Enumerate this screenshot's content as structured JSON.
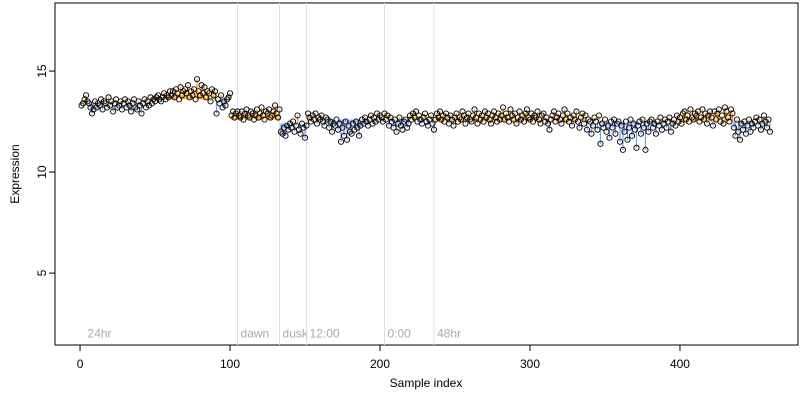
{
  "chart_data": {
    "type": "scatter",
    "xlabel": "Sample index",
    "ylabel": "Expression",
    "xlim": [
      -16.7,
      478.7
    ],
    "ylim": [
      1.44,
      18.37
    ],
    "xticks": [
      0,
      100,
      200,
      300,
      400
    ],
    "yticks": [
      5,
      10,
      15
    ],
    "above_color": "#ff9f1c",
    "below_color": "#7aa2e8",
    "point_color": "#000000",
    "reference_levels": [
      {
        "start": 1,
        "end": 48,
        "level": 13.4
      },
      {
        "start": 49,
        "end": 100,
        "level": 13.6
      },
      {
        "start": 101,
        "end": 133,
        "level": 12.6
      },
      {
        "start": 134,
        "end": 152,
        "level": 12.4
      },
      {
        "start": 153,
        "end": 235,
        "level": 12.6
      },
      {
        "start": 236,
        "end": 460,
        "level": 12.5
      }
    ],
    "markers": [
      {
        "x": 3,
        "label": "24hr",
        "line": false
      },
      {
        "x": 105,
        "label": "dawn",
        "line": true
      },
      {
        "x": 133,
        "label": "dusk",
        "line": true
      },
      {
        "x": 151,
        "label": "12:00",
        "line": true
      },
      {
        "x": 203,
        "label": "0:00",
        "line": true
      },
      {
        "x": 236,
        "label": "48hr",
        "line": true
      }
    ],
    "marker_label_y": 2.0,
    "x": [
      1,
      2,
      3,
      4,
      5,
      6,
      7,
      8,
      9,
      10,
      11,
      12,
      13,
      14,
      15,
      16,
      17,
      18,
      19,
      20,
      21,
      22,
      23,
      24,
      25,
      26,
      27,
      28,
      29,
      30,
      31,
      32,
      33,
      34,
      35,
      36,
      37,
      38,
      39,
      40,
      41,
      42,
      43,
      44,
      45,
      46,
      47,
      48,
      49,
      50,
      51,
      52,
      53,
      54,
      55,
      56,
      57,
      58,
      59,
      60,
      61,
      62,
      63,
      64,
      65,
      66,
      67,
      68,
      69,
      70,
      71,
      72,
      73,
      74,
      75,
      76,
      77,
      78,
      79,
      80,
      81,
      82,
      83,
      84,
      85,
      86,
      87,
      88,
      89,
      90,
      91,
      92,
      93,
      94,
      95,
      96,
      97,
      98,
      99,
      100,
      101,
      102,
      103,
      104,
      105,
      106,
      107,
      108,
      109,
      110,
      111,
      112,
      113,
      114,
      115,
      116,
      117,
      118,
      119,
      120,
      121,
      122,
      123,
      124,
      125,
      126,
      127,
      128,
      129,
      130,
      131,
      132,
      133,
      134,
      135,
      136,
      137,
      138,
      139,
      140,
      141,
      142,
      143,
      144,
      145,
      146,
      147,
      148,
      149,
      150,
      151,
      152,
      153,
      154,
      155,
      156,
      157,
      158,
      159,
      160,
      161,
      162,
      163,
      164,
      165,
      166,
      167,
      168,
      169,
      170,
      171,
      172,
      173,
      174,
      175,
      176,
      177,
      178,
      179,
      180,
      181,
      182,
      183,
      184,
      185,
      186,
      187,
      188,
      189,
      190,
      191,
      192,
      193,
      194,
      195,
      196,
      197,
      198,
      199,
      200,
      201,
      202,
      203,
      204,
      205,
      206,
      207,
      208,
      209,
      210,
      211,
      212,
      213,
      214,
      215,
      216,
      217,
      218,
      219,
      220,
      221,
      222,
      223,
      224,
      225,
      226,
      227,
      228,
      229,
      230,
      231,
      232,
      233,
      234,
      235,
      236,
      237,
      238,
      239,
      240,
      241,
      242,
      243,
      244,
      245,
      246,
      247,
      248,
      249,
      250,
      251,
      252,
      253,
      254,
      255,
      256,
      257,
      258,
      259,
      260,
      261,
      262,
      263,
      264,
      265,
      266,
      267,
      268,
      269,
      270,
      271,
      272,
      273,
      274,
      275,
      276,
      277,
      278,
      279,
      280,
      281,
      282,
      283,
      284,
      285,
      286,
      287,
      288,
      289,
      290,
      291,
      292,
      293,
      294,
      295,
      296,
      297,
      298,
      299,
      300,
      301,
      302,
      303,
      304,
      305,
      306,
      307,
      308,
      309,
      310,
      311,
      312,
      313,
      314,
      315,
      316,
      317,
      318,
      319,
      320,
      321,
      322,
      323,
      324,
      325,
      326,
      327,
      328,
      329,
      330,
      331,
      332,
      333,
      334,
      335,
      336,
      337,
      338,
      339,
      340,
      341,
      342,
      343,
      344,
      345,
      346,
      347,
      348,
      349,
      350,
      351,
      352,
      353,
      354,
      355,
      356,
      357,
      358,
      359,
      360,
      361,
      362,
      363,
      364,
      365,
      366,
      367,
      368,
      369,
      370,
      371,
      372,
      373,
      374,
      375,
      376,
      377,
      378,
      379,
      380,
      381,
      382,
      383,
      384,
      385,
      386,
      387,
      388,
      389,
      390,
      391,
      392,
      393,
      394,
      395,
      396,
      397,
      398,
      399,
      400,
      401,
      402,
      403,
      404,
      405,
      406,
      407,
      408,
      409,
      410,
      411,
      412,
      413,
      414,
      415,
      416,
      417,
      418,
      419,
      420,
      421,
      422,
      423,
      424,
      425,
      426,
      427,
      428,
      429,
      430,
      431,
      432,
      433,
      434,
      435,
      436,
      437,
      438,
      439,
      440,
      441,
      442,
      443,
      444,
      445,
      446,
      447,
      448,
      449,
      450,
      451,
      452,
      453,
      454,
      455,
      456,
      457,
      458,
      459,
      460
    ],
    "values": [
      13.3,
      13.4,
      13.6,
      13.8,
      13.5,
      13.4,
      13.2,
      12.9,
      13.1,
      13.5,
      13.2,
      13.4,
      13.3,
      13.6,
      13.1,
      13.5,
      13.4,
      13.2,
      13.7,
      13.3,
      13.5,
      13.0,
      13.4,
      13.6,
      13.2,
      13.3,
      13.5,
      13.1,
      13.4,
      13.6,
      13.2,
      13.5,
      13.3,
      13.0,
      13.4,
      13.6,
      13.2,
      13.1,
      13.5,
      13.3,
      12.9,
      13.4,
      13.6,
      13.2,
      13.5,
      13.3,
      13.7,
      13.4,
      13.6,
      13.5,
      13.7,
      13.8,
      13.6,
      13.5,
      13.7,
      13.9,
      13.6,
      13.8,
      13.7,
      14.0,
      13.8,
      14.0,
      13.7,
      14.1,
      13.9,
      13.6,
      14.2,
      13.8,
      14.0,
      14.1,
      13.9,
      14.3,
      13.7,
      14.0,
      13.8,
      14.1,
      13.6,
      14.6,
      14.0,
      13.8,
      14.3,
      13.9,
      14.2,
      13.7,
      14.0,
      13.9,
      13.5,
      14.1,
      13.8,
      14.0,
      12.9,
      13.6,
      13.4,
      13.8,
      13.2,
      13.5,
      13.3,
      13.6,
      13.7,
      13.9,
      12.8,
      13.0,
      12.7,
      12.9,
      13.0,
      12.8,
      12.7,
      13.0,
      12.6,
      12.9,
      13.1,
      12.8,
      12.7,
      13.0,
      12.9,
      12.6,
      12.8,
      13.1,
      12.7,
      12.9,
      13.2,
      12.8,
      12.6,
      13.0,
      12.9,
      13.1,
      12.7,
      12.8,
      13.0,
      13.3,
      12.9,
      12.7,
      13.1,
      12.0,
      11.9,
      12.2,
      11.8,
      12.3,
      12.1,
      12.4,
      12.2,
      12.5,
      12.0,
      12.3,
      12.8,
      12.1,
      11.9,
      12.4,
      12.2,
      11.7,
      12.3,
      12.9,
      12.7,
      12.5,
      12.8,
      12.6,
      12.9,
      12.4,
      12.7,
      12.6,
      12.8,
      12.5,
      12.3,
      12.7,
      12.6,
      12.2,
      12.5,
      12.0,
      12.4,
      12.3,
      12.6,
      12.1,
      12.4,
      11.5,
      12.2,
      11.8,
      12.5,
      11.6,
      12.3,
      12.0,
      11.9,
      12.4,
      12.1,
      12.5,
      12.2,
      11.8,
      12.3,
      12.6,
      12.4,
      12.7,
      12.5,
      12.3,
      12.6,
      12.8,
      12.4,
      12.7,
      12.5,
      12.9,
      12.6,
      12.8,
      12.7,
      12.5,
      12.9,
      12.6,
      12.8,
      12.3,
      12.7,
      12.5,
      12.2,
      12.6,
      12.0,
      12.4,
      12.7,
      12.3,
      12.1,
      12.5,
      12.6,
      12.2,
      12.4,
      12.8,
      12.6,
      12.9,
      12.7,
      13.0,
      12.5,
      12.8,
      12.6,
      12.4,
      12.7,
      12.9,
      12.5,
      12.3,
      12.6,
      12.8,
      12.4,
      12.1,
      12.6,
      12.9,
      12.7,
      13.0,
      12.6,
      12.8,
      12.5,
      12.9,
      12.7,
      12.4,
      12.8,
      12.6,
      12.3,
      12.7,
      12.9,
      12.5,
      12.7,
      12.6,
      13.0,
      12.8,
      12.4,
      12.7,
      12.9,
      12.6,
      12.5,
      12.8,
      13.1,
      12.7,
      12.4,
      12.9,
      12.6,
      12.8,
      12.5,
      13.0,
      12.7,
      12.9,
      12.6,
      12.4,
      12.8,
      13.0,
      12.7,
      12.5,
      12.9,
      12.6,
      12.8,
      13.2,
      12.6,
      12.9,
      12.7,
      12.5,
      13.1,
      12.8,
      12.6,
      12.9,
      12.4,
      12.7,
      13.0,
      12.6,
      12.8,
      12.5,
      12.9,
      13.1,
      12.7,
      12.6,
      12.9,
      12.5,
      12.8,
      12.7,
      13.0,
      12.6,
      12.4,
      12.8,
      12.9,
      12.5,
      12.7,
      12.4,
      12.1,
      12.6,
      12.8,
      13.0,
      12.5,
      12.7,
      12.9,
      12.6,
      12.4,
      12.8,
      13.1,
      12.6,
      12.9,
      12.5,
      12.7,
      12.3,
      12.8,
      12.6,
      13.0,
      12.5,
      12.2,
      12.7,
      12.9,
      12.4,
      12.8,
      12.1,
      12.6,
      12.5,
      11.9,
      12.3,
      12.7,
      12.5,
      12.1,
      12.8,
      11.4,
      12.4,
      12.2,
      12.6,
      12.0,
      12.3,
      11.7,
      12.5,
      12.2,
      12.6,
      11.9,
      12.4,
      12.5,
      11.5,
      12.3,
      11.1,
      12.0,
      12.5,
      11.6,
      12.2,
      12.6,
      11.8,
      12.4,
      12.1,
      11.2,
      12.3,
      12.5,
      11.9,
      12.6,
      12.2,
      11.1,
      12.4,
      12.0,
      12.5,
      12.6,
      12.2,
      12.4,
      11.9,
      12.5,
      12.3,
      12.7,
      12.1,
      12.4,
      12.6,
      12.2,
      12.5,
      12.7,
      12.0,
      12.4,
      12.6,
      12.3,
      12.8,
      12.5,
      12.7,
      12.4,
      12.9,
      13.0,
      12.6,
      12.8,
      12.5,
      13.1,
      12.7,
      12.6,
      12.9,
      12.8,
      13.0,
      12.5,
      12.7,
      13.1,
      12.6,
      12.9,
      12.4,
      12.8,
      13.0,
      12.7,
      12.3,
      13.0,
      12.6,
      12.9,
      13.1,
      12.5,
      12.8,
      12.4,
      13.2,
      13.0,
      12.7,
      12.5,
      13.1,
      12.9,
      12.2,
      11.8,
      12.6,
      12.0,
      11.6,
      12.4,
      12.1,
      12.5,
      11.9,
      12.3,
      12.6,
      12.0,
      12.4,
      12.2,
      12.5,
      12.7,
      12.3,
      12.6,
      12.1,
      12.4,
      12.8,
      12.5,
      12.2,
      12.6,
      12.0
    ]
  }
}
